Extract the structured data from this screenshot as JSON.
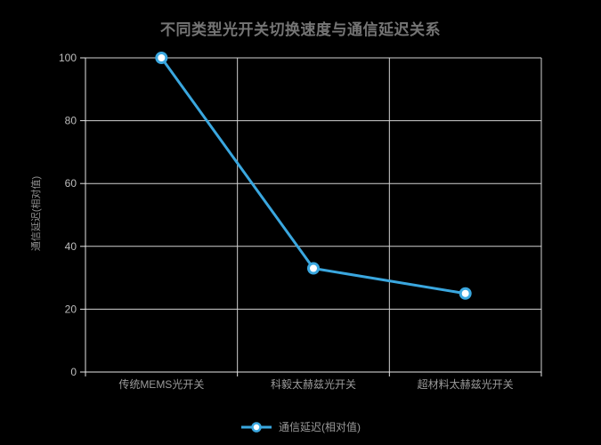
{
  "chart_data": {
    "type": "line",
    "title": "不同类型光开关切换速度与通信延迟关系",
    "categories": [
      "传统MEMS光开关",
      "科毅太赫兹光开关",
      "超材料太赫兹光开关"
    ],
    "series": [
      {
        "name": "通信延迟(相对值)",
        "values": [
          100,
          33,
          25
        ]
      }
    ],
    "xlabel": "",
    "ylabel": "通信延迟(相对值)",
    "ylim": [
      0,
      100
    ],
    "yticks": [
      0,
      20,
      40,
      60,
      80,
      100
    ],
    "grid": true,
    "legend_position": "bottom",
    "colors": {
      "background": "#000000",
      "line": "#3aa7df",
      "marker_fill": "#ffffff",
      "title_text": "#757575",
      "tick_label": "#bdbdbd",
      "axis_label": "#9a9a9a",
      "axis_name": "#8f8f8f",
      "grid_line": "#d2d2d2",
      "axis_line": "#e6e6e6"
    }
  },
  "legend": {
    "label": "通信延迟(相对值)"
  }
}
